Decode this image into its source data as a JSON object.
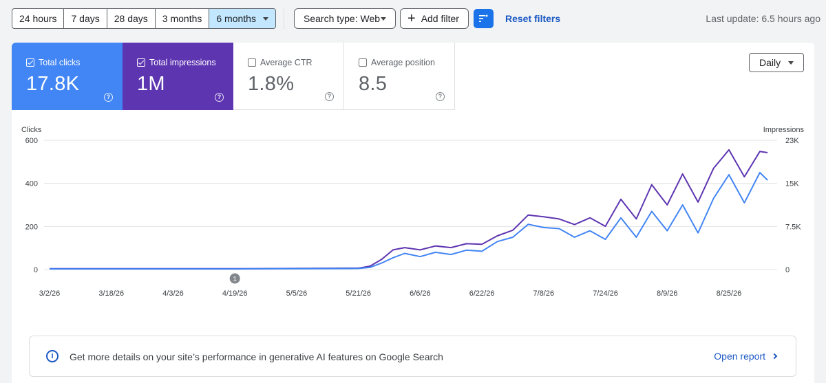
{
  "filters": {
    "ranges": [
      "24 hours",
      "7 days",
      "28 days",
      "3 months",
      "6 months"
    ],
    "active_range": "6 months",
    "search_type": "Search type: Web",
    "add_filter": "Add filter",
    "reset": "Reset filters",
    "last_update": "Last update: 6.5 hours ago"
  },
  "metrics": [
    {
      "label": "Total clicks",
      "value": "17.8K",
      "checked": true
    },
    {
      "label": "Total impressions",
      "value": "1M",
      "checked": true
    },
    {
      "label": "Average CTR",
      "value": "1.8%",
      "checked": false
    },
    {
      "label": "Average position",
      "value": "8.5",
      "checked": false
    }
  ],
  "granularity": "Daily",
  "colors": {
    "clicks": "#4285f4",
    "impressions": "#5e35b1"
  },
  "chart_data": {
    "type": "line",
    "y_left_label": "Clicks",
    "y_right_label": "Impressions",
    "y_left_ticks": [
      "600",
      "400",
      "200",
      "0"
    ],
    "y_right_ticks": [
      "23K",
      "15K",
      "7.5K",
      "0"
    ],
    "y_left_range": [
      0,
      600
    ],
    "y_right_range": [
      0,
      23000
    ],
    "x_ticks": [
      "3/2/26",
      "3/18/26",
      "4/3/26",
      "4/19/26",
      "5/5/26",
      "5/21/26",
      "6/6/26",
      "6/22/26",
      "7/8/26",
      "7/24/26",
      "8/9/26",
      "8/25/26"
    ],
    "annotation": {
      "label": "1",
      "date": "4/19/26"
    },
    "grid": true,
    "legend": "none",
    "series": [
      {
        "name": "Total clicks",
        "axis": "left",
        "points": [
          [
            "3/2/26",
            3
          ],
          [
            "3/18/26",
            3
          ],
          [
            "4/3/26",
            3
          ],
          [
            "4/19/26",
            3
          ],
          [
            "5/5/26",
            4
          ],
          [
            "5/21/26",
            5
          ],
          [
            "5/24/26",
            10
          ],
          [
            "5/27/26",
            30
          ],
          [
            "5/30/26",
            55
          ],
          [
            "6/2/26",
            75
          ],
          [
            "6/6/26",
            60
          ],
          [
            "6/10/26",
            80
          ],
          [
            "6/14/26",
            70
          ],
          [
            "6/18/26",
            90
          ],
          [
            "6/22/26",
            85
          ],
          [
            "6/26/26",
            130
          ],
          [
            "6/30/26",
            150
          ],
          [
            "7/4/26",
            210
          ],
          [
            "7/8/26",
            195
          ],
          [
            "7/12/26",
            190
          ],
          [
            "7/16/26",
            150
          ],
          [
            "7/20/26",
            180
          ],
          [
            "7/24/26",
            140
          ],
          [
            "7/28/26",
            240
          ],
          [
            "8/1/26",
            150
          ],
          [
            "8/5/26",
            270
          ],
          [
            "8/9/26",
            180
          ],
          [
            "8/13/26",
            300
          ],
          [
            "8/17/26",
            170
          ],
          [
            "8/21/26",
            330
          ],
          [
            "8/25/26",
            440
          ],
          [
            "8/29/26",
            310
          ],
          [
            "9/2/26",
            450
          ],
          [
            "9/4/26",
            415
          ]
        ]
      },
      {
        "name": "Total impressions",
        "axis": "right",
        "points": [
          [
            "3/2/26",
            150
          ],
          [
            "3/18/26",
            150
          ],
          [
            "4/3/26",
            150
          ],
          [
            "4/19/26",
            150
          ],
          [
            "5/5/26",
            200
          ],
          [
            "5/21/26",
            250
          ],
          [
            "5/24/26",
            600
          ],
          [
            "5/27/26",
            1800
          ],
          [
            "5/30/26",
            3500
          ],
          [
            "6/2/26",
            3900
          ],
          [
            "6/6/26",
            3500
          ],
          [
            "6/10/26",
            4200
          ],
          [
            "6/14/26",
            3900
          ],
          [
            "6/18/26",
            4600
          ],
          [
            "6/22/26",
            4500
          ],
          [
            "6/26/26",
            6000
          ],
          [
            "6/30/26",
            7000
          ],
          [
            "7/4/26",
            9700
          ],
          [
            "7/8/26",
            9400
          ],
          [
            "7/12/26",
            9000
          ],
          [
            "7/16/26",
            8000
          ],
          [
            "7/20/26",
            9200
          ],
          [
            "7/24/26",
            7700
          ],
          [
            "7/28/26",
            12500
          ],
          [
            "8/1/26",
            9000
          ],
          [
            "8/5/26",
            15100
          ],
          [
            "8/9/26",
            11500
          ],
          [
            "8/13/26",
            17000
          ],
          [
            "8/17/26",
            12000
          ],
          [
            "8/21/26",
            18000
          ],
          [
            "8/25/26",
            21300
          ],
          [
            "8/29/26",
            16500
          ],
          [
            "9/2/26",
            21000
          ],
          [
            "9/4/26",
            20800
          ]
        ]
      }
    ]
  },
  "banner": {
    "text": "Get more details on your site’s performance in generative AI features on Google Search",
    "link": "Open report"
  }
}
